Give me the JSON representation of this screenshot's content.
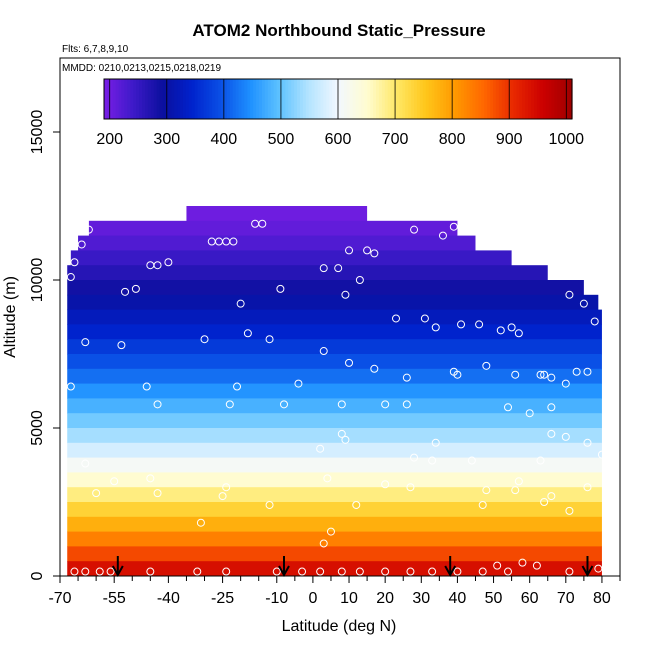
{
  "chart_data": {
    "type": "heatmap",
    "title": "ATOM2 Northbound Static_Pressure",
    "flights_label": "Flts: 6,7,8,9,10",
    "dates_label": "MMDD: 0210,0213,0215,0218,0219",
    "xlabel": "Latitude (deg N)",
    "ylabel": "Altitude (m)",
    "xlim": [
      -70,
      85
    ],
    "ylim": [
      0,
      17500
    ],
    "x_ticks": [
      "-70",
      "-55",
      "-40",
      "-25",
      "-10",
      "0",
      "10",
      "20",
      "30",
      "40",
      "50",
      "60",
      "70",
      "80"
    ],
    "x_tick_values": [
      -70,
      -55,
      -40,
      -25,
      -10,
      0,
      10,
      20,
      30,
      40,
      50,
      60,
      70,
      80
    ],
    "x_minor_ticks": [
      -65,
      -60,
      -50,
      -45,
      -35,
      -30,
      -20,
      -15,
      -5,
      5,
      15,
      25,
      35,
      45,
      55,
      65,
      75,
      85
    ],
    "y_ticks": [
      "0",
      "5000",
      "10000",
      "15000"
    ],
    "y_tick_values": [
      0,
      5000,
      10000,
      15000
    ],
    "colorbar": {
      "unit_range": [
        190,
        1010
      ],
      "ticks": [
        "200",
        "300",
        "400",
        "500",
        "600",
        "700",
        "800",
        "900",
        "1000"
      ],
      "tick_values": [
        200,
        300,
        400,
        500,
        600,
        700,
        800,
        900,
        1000
      ],
      "colors": [
        "#7a1ee6",
        "#3d1ac8",
        "#0b0f9e",
        "#0022cc",
        "#0a50e6",
        "#1e90ff",
        "#5ec2ff",
        "#b4e4ff",
        "#f2f8ff",
        "#fffcd0",
        "#ffe866",
        "#ffc61a",
        "#ff9900",
        "#ff6600",
        "#e82800",
        "#cc0000",
        "#9e0000"
      ]
    },
    "grid": false,
    "field_rows": [
      {
        "alt": 12000,
        "lat_min": -35,
        "lat_max": 15,
        "value": 200
      },
      {
        "alt": 11500,
        "lat_min": -62,
        "lat_max": 40,
        "value": 210
      },
      {
        "alt": 11000,
        "lat_min": -65,
        "lat_max": 45,
        "value": 225
      },
      {
        "alt": 10500,
        "lat_min": -67,
        "lat_max": 55,
        "value": 245
      },
      {
        "alt": 10000,
        "lat_min": -68,
        "lat_max": 65,
        "value": 265
      },
      {
        "alt": 9500,
        "lat_min": -68,
        "lat_max": 75,
        "value": 285
      },
      {
        "alt": 9000,
        "lat_min": -68,
        "lat_max": 79,
        "value": 305
      },
      {
        "alt": 8500,
        "lat_min": -68,
        "lat_max": 80,
        "value": 325
      },
      {
        "alt": 8000,
        "lat_min": -68,
        "lat_max": 80,
        "value": 345
      },
      {
        "alt": 7500,
        "lat_min": -68,
        "lat_max": 80,
        "value": 370
      },
      {
        "alt": 7000,
        "lat_min": -68,
        "lat_max": 80,
        "value": 395
      },
      {
        "alt": 6500,
        "lat_min": -68,
        "lat_max": 80,
        "value": 420
      },
      {
        "alt": 6000,
        "lat_min": -68,
        "lat_max": 80,
        "value": 450
      },
      {
        "alt": 5500,
        "lat_min": -68,
        "lat_max": 80,
        "value": 480
      },
      {
        "alt": 5000,
        "lat_min": -68,
        "lat_max": 80,
        "value": 510
      },
      {
        "alt": 4500,
        "lat_min": -68,
        "lat_max": 80,
        "value": 540
      },
      {
        "alt": 4000,
        "lat_min": -68,
        "lat_max": 80,
        "value": 575
      },
      {
        "alt": 3500,
        "lat_min": -68,
        "lat_max": 80,
        "value": 610
      },
      {
        "alt": 3000,
        "lat_min": -68,
        "lat_max": 80,
        "value": 650
      },
      {
        "alt": 2500,
        "lat_min": -68,
        "lat_max": 80,
        "value": 690
      },
      {
        "alt": 2000,
        "lat_min": -68,
        "lat_max": 80,
        "value": 735
      },
      {
        "alt": 1500,
        "lat_min": -68,
        "lat_max": 80,
        "value": 780
      },
      {
        "alt": 1000,
        "lat_min": -68,
        "lat_max": 80,
        "value": 830
      },
      {
        "alt": 500,
        "lat_min": -68,
        "lat_max": 80,
        "value": 880
      },
      {
        "alt": 0,
        "lat_min": -68,
        "lat_max": 80,
        "value": 940
      }
    ],
    "takeoff_arrows": [
      -54,
      -8,
      38,
      76
    ],
    "observation_points": [
      {
        "lat": -67,
        "alt": 10100
      },
      {
        "lat": -66,
        "alt": 10600
      },
      {
        "lat": -64,
        "alt": 11200
      },
      {
        "lat": -62,
        "alt": 11700
      },
      {
        "lat": -63,
        "alt": 7900
      },
      {
        "lat": -67,
        "alt": 6400
      },
      {
        "lat": -52,
        "alt": 9600
      },
      {
        "lat": -49,
        "alt": 9700
      },
      {
        "lat": -45,
        "alt": 10500
      },
      {
        "lat": -43,
        "alt": 10500
      },
      {
        "lat": -40,
        "alt": 10600
      },
      {
        "lat": -53,
        "alt": 7800
      },
      {
        "lat": -46,
        "alt": 6400
      },
      {
        "lat": -43,
        "alt": 5800
      },
      {
        "lat": -28,
        "alt": 11300
      },
      {
        "lat": -26,
        "alt": 11300
      },
      {
        "lat": -24,
        "alt": 11300
      },
      {
        "lat": -22,
        "alt": 11300
      },
      {
        "lat": -16,
        "alt": 11900
      },
      {
        "lat": -14,
        "alt": 11900
      },
      {
        "lat": -18,
        "alt": 8200
      },
      {
        "lat": -30,
        "alt": 8000
      },
      {
        "lat": -21,
        "alt": 6400
      },
      {
        "lat": -23,
        "alt": 5800
      },
      {
        "lat": -20,
        "alt": 9200
      },
      {
        "lat": -9,
        "alt": 9700
      },
      {
        "lat": -8,
        "alt": 5800
      },
      {
        "lat": -12,
        "alt": 8000
      },
      {
        "lat": -4,
        "alt": 6500
      },
      {
        "lat": 3,
        "alt": 10400
      },
      {
        "lat": 7,
        "alt": 10400
      },
      {
        "lat": 10,
        "alt": 11000
      },
      {
        "lat": 13,
        "alt": 10000
      },
      {
        "lat": 15,
        "alt": 11000
      },
      {
        "lat": 17,
        "alt": 10900
      },
      {
        "lat": 9,
        "alt": 9500
      },
      {
        "lat": 8,
        "alt": 5800
      },
      {
        "lat": 3,
        "alt": 7600
      },
      {
        "lat": 10,
        "alt": 7200
      },
      {
        "lat": 17,
        "alt": 7000
      },
      {
        "lat": 23,
        "alt": 8700
      },
      {
        "lat": 28,
        "alt": 11700
      },
      {
        "lat": 36,
        "alt": 11500
      },
      {
        "lat": 39,
        "alt": 11800
      },
      {
        "lat": 31,
        "alt": 8700
      },
      {
        "lat": 34,
        "alt": 8400
      },
      {
        "lat": 26,
        "alt": 6700
      },
      {
        "lat": 20,
        "alt": 5800
      },
      {
        "lat": 26,
        "alt": 5800
      },
      {
        "lat": 41,
        "alt": 8500
      },
      {
        "lat": 46,
        "alt": 8500
      },
      {
        "lat": 52,
        "alt": 8300
      },
      {
        "lat": 55,
        "alt": 8400
      },
      {
        "lat": 57,
        "alt": 8200
      },
      {
        "lat": 48,
        "alt": 7100
      },
      {
        "lat": 39,
        "alt": 6900
      },
      {
        "lat": 40,
        "alt": 6800
      },
      {
        "lat": 56,
        "alt": 6800
      },
      {
        "lat": 63,
        "alt": 6800
      },
      {
        "lat": 64,
        "alt": 6800
      },
      {
        "lat": 66,
        "alt": 6700
      },
      {
        "lat": 70,
        "alt": 6500
      },
      {
        "lat": 73,
        "alt": 6900
      },
      {
        "lat": 76,
        "alt": 6900
      },
      {
        "lat": 71,
        "alt": 9500
      },
      {
        "lat": 78,
        "alt": 8600
      },
      {
        "lat": 75,
        "alt": 9200
      },
      {
        "lat": 54,
        "alt": 5700
      },
      {
        "lat": 60,
        "alt": 5500
      },
      {
        "lat": 66,
        "alt": 5700
      },
      {
        "lat": 70,
        "alt": 4700
      },
      {
        "lat": 66,
        "alt": 4800
      },
      {
        "lat": 76,
        "alt": 4500
      },
      {
        "lat": 80,
        "alt": 4100
      },
      {
        "lat": 2,
        "alt": 4300
      },
      {
        "lat": 8,
        "alt": 4800
      },
      {
        "lat": 9,
        "alt": 4600
      },
      {
        "lat": 34,
        "alt": 4500
      },
      {
        "lat": 28,
        "alt": 4000
      },
      {
        "lat": 33,
        "alt": 3900
      },
      {
        "lat": 44,
        "alt": 3900
      },
      {
        "lat": 63,
        "alt": 3900
      },
      {
        "lat": -63,
        "alt": 3800
      },
      {
        "lat": -55,
        "alt": 3200
      },
      {
        "lat": -45,
        "alt": 3300
      },
      {
        "lat": -24,
        "alt": 3000
      },
      {
        "lat": -25,
        "alt": 2700
      },
      {
        "lat": -60,
        "alt": 2800
      },
      {
        "lat": -43,
        "alt": 2800
      },
      {
        "lat": -12,
        "alt": 2400
      },
      {
        "lat": 4,
        "alt": 3300
      },
      {
        "lat": 20,
        "alt": 3100
      },
      {
        "lat": 27,
        "alt": 3000
      },
      {
        "lat": 48,
        "alt": 2900
      },
      {
        "lat": 56,
        "alt": 2900
      },
      {
        "lat": 57,
        "alt": 3200
      },
      {
        "lat": 66,
        "alt": 2700
      },
      {
        "lat": 71,
        "alt": 2200
      },
      {
        "lat": 76,
        "alt": 3000
      },
      {
        "lat": 64,
        "alt": 2500
      },
      {
        "lat": 47,
        "alt": 2400
      },
      {
        "lat": 12,
        "alt": 2400
      },
      {
        "lat": -31,
        "alt": 1800
      },
      {
        "lat": 5,
        "alt": 1500
      },
      {
        "lat": 3,
        "alt": 1100
      },
      {
        "lat": -66,
        "alt": 150
      },
      {
        "lat": -63,
        "alt": 150
      },
      {
        "lat": -59,
        "alt": 150
      },
      {
        "lat": -56,
        "alt": 150
      },
      {
        "lat": -45,
        "alt": 150
      },
      {
        "lat": -32,
        "alt": 150
      },
      {
        "lat": -24,
        "alt": 150
      },
      {
        "lat": -10,
        "alt": 150
      },
      {
        "lat": -3,
        "alt": 150
      },
      {
        "lat": 2,
        "alt": 150
      },
      {
        "lat": 8,
        "alt": 150
      },
      {
        "lat": 13,
        "alt": 150
      },
      {
        "lat": 20,
        "alt": 150
      },
      {
        "lat": 27,
        "alt": 150
      },
      {
        "lat": 33,
        "alt": 150
      },
      {
        "lat": 40,
        "alt": 150
      },
      {
        "lat": 47,
        "alt": 150
      },
      {
        "lat": 54,
        "alt": 150
      },
      {
        "lat": 62,
        "alt": 350
      },
      {
        "lat": 58,
        "alt": 450
      },
      {
        "lat": 51,
        "alt": 350
      },
      {
        "lat": 71,
        "alt": 150
      },
      {
        "lat": 79,
        "alt": 250
      }
    ]
  }
}
